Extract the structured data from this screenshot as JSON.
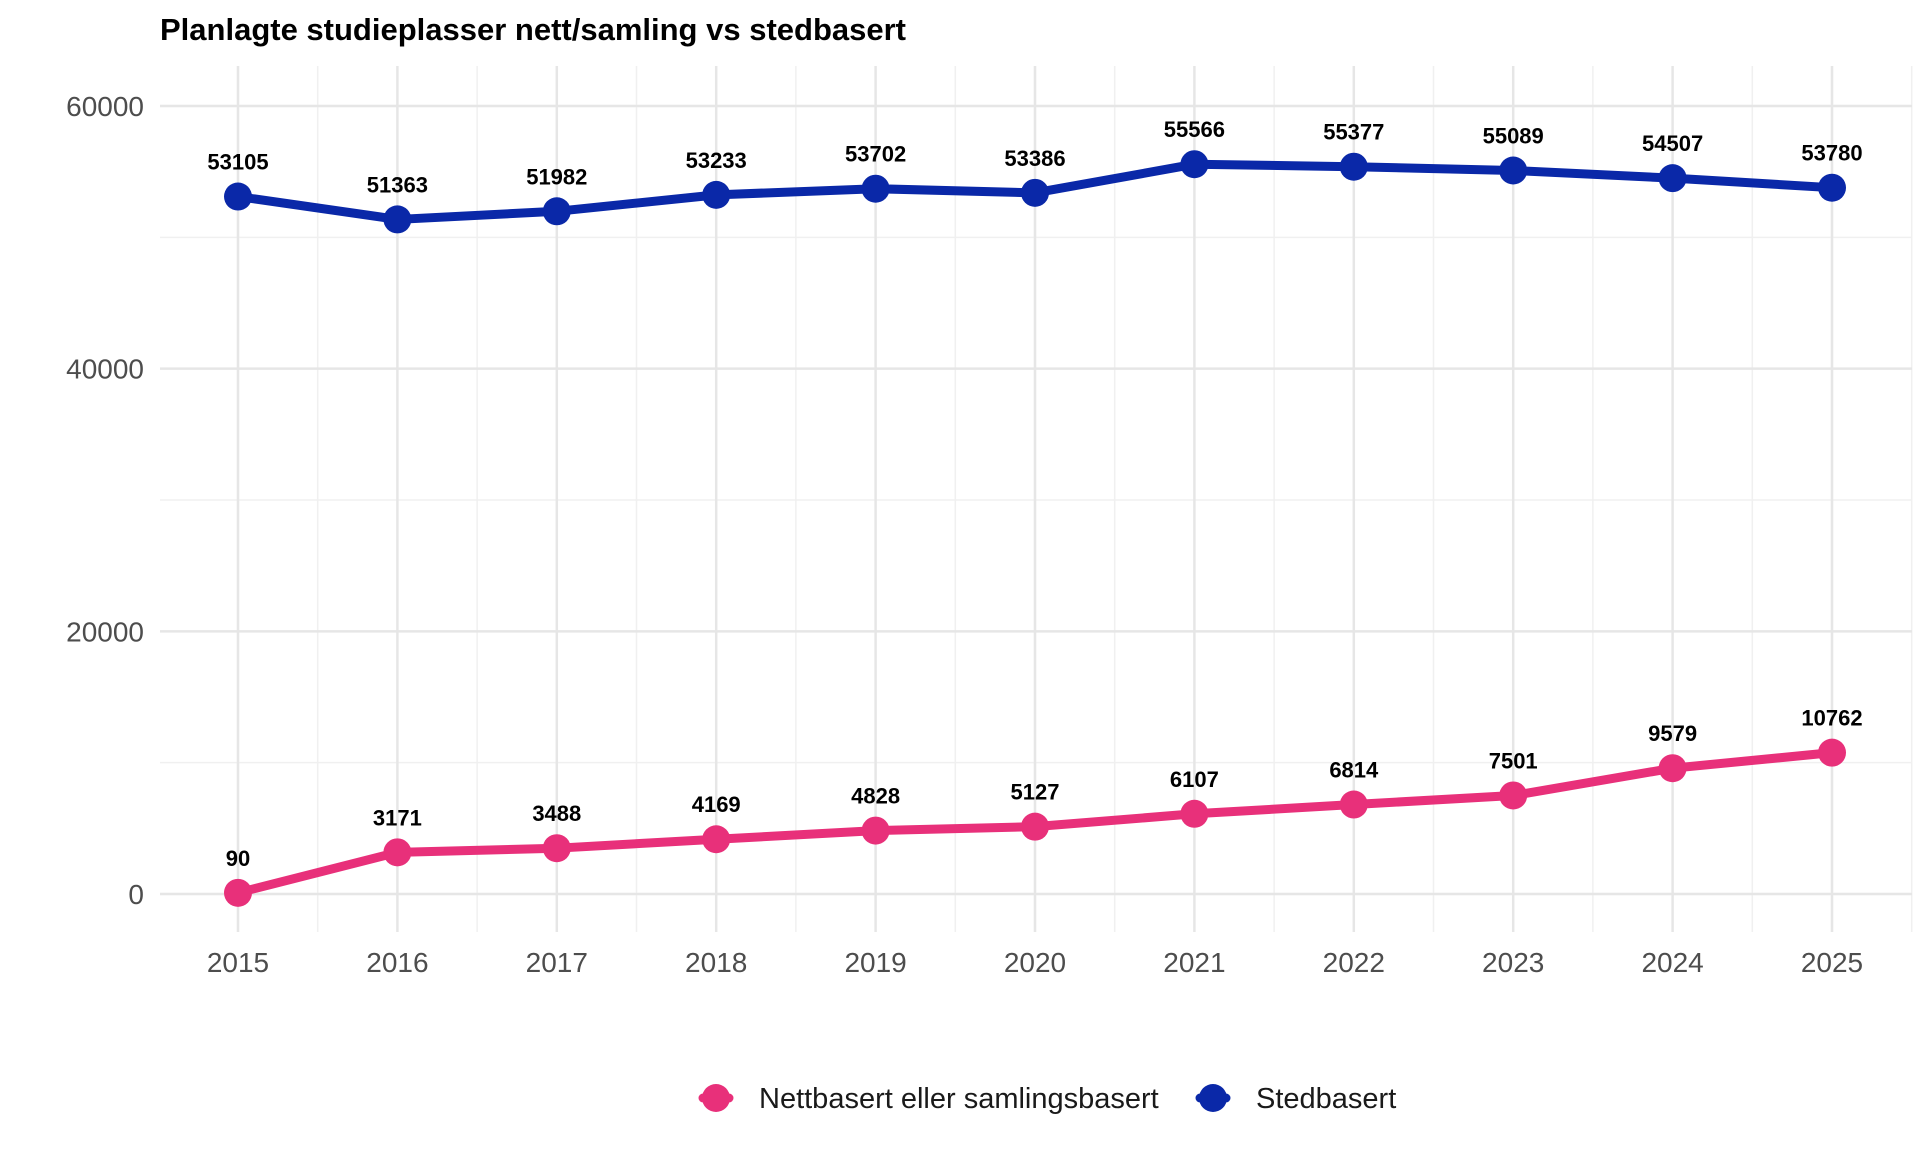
{
  "chart_data": {
    "type": "line",
    "title": "Planlagte studieplasser nett/samling vs stedbasert",
    "xlabel": "",
    "ylabel": "",
    "x": [
      "2015",
      "2016",
      "2017",
      "2018",
      "2019",
      "2020",
      "2021",
      "2022",
      "2023",
      "2024",
      "2025"
    ],
    "y_ticks": [
      "0",
      "20000",
      "40000",
      "60000"
    ],
    "ylim": [
      -3000,
      63000
    ],
    "grid": true,
    "legend_position": "bottom",
    "series": [
      {
        "name": "Nettbasert eller samlingsbasert",
        "color": "#E8307A",
        "values": [
          90,
          3171,
          3488,
          4169,
          4828,
          5127,
          6107,
          6814,
          7501,
          9579,
          10762
        ],
        "labels": [
          "90",
          "3171",
          "3488",
          "4169",
          "4828",
          "5127",
          "6107",
          "6814",
          "7501",
          "9579",
          "10762"
        ]
      },
      {
        "name": "Stedbasert",
        "color": "#0A28A8",
        "values": [
          53105,
          51363,
          51982,
          53233,
          53702,
          53386,
          55566,
          55377,
          55089,
          54507,
          53780
        ],
        "labels": [
          "53105",
          "51363",
          "51982",
          "53233",
          "53702",
          "53386",
          "55566",
          "55377",
          "55089",
          "54507",
          "53780"
        ]
      }
    ]
  }
}
